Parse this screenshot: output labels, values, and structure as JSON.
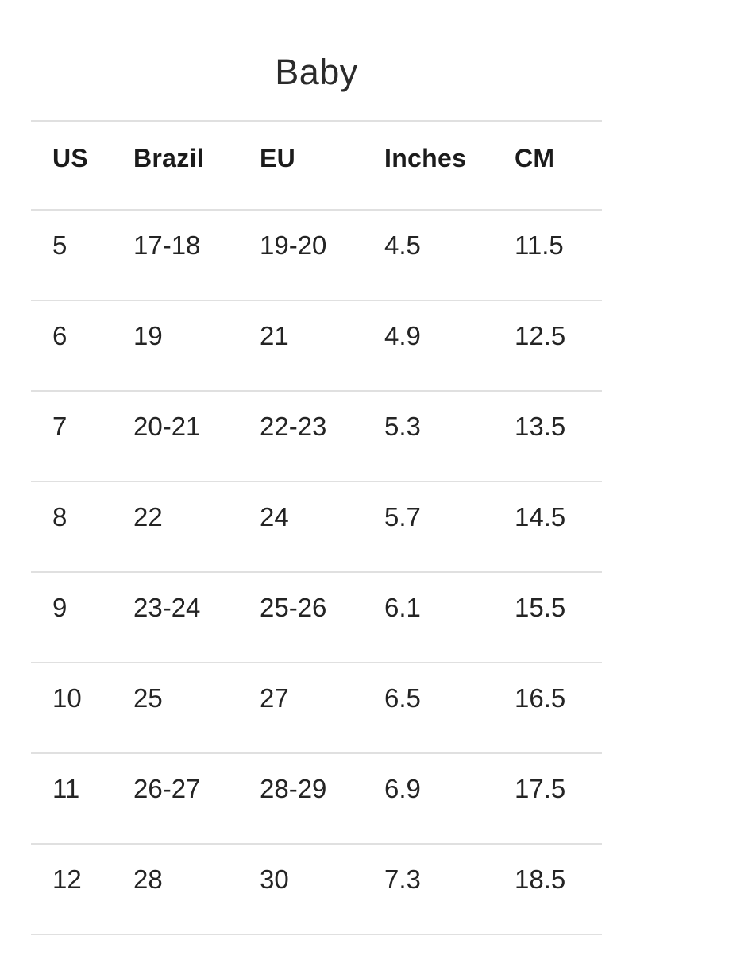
{
  "page": {
    "title": "Baby"
  },
  "size_table": {
    "headers": [
      "US",
      "Brazil",
      "EU",
      "Inches",
      "CM"
    ],
    "rows": [
      [
        "5",
        "17-18",
        "19-20",
        "4.5",
        "11.5"
      ],
      [
        "6",
        "19",
        "21",
        "4.9",
        "12.5"
      ],
      [
        "7",
        "20-21",
        "22-23",
        "5.3",
        "13.5"
      ],
      [
        "8",
        "22",
        "24",
        "5.7",
        "14.5"
      ],
      [
        "9",
        "23-24",
        "25-26",
        "6.1",
        "15.5"
      ],
      [
        "10",
        "25",
        "27",
        "6.5",
        "16.5"
      ],
      [
        "11",
        "26-27",
        "28-29",
        "6.9",
        "17.5"
      ],
      [
        "12",
        "28",
        "30",
        "7.3",
        "18.5"
      ]
    ]
  },
  "colors": {
    "background": "#ffffff",
    "text": "#242424",
    "heading": "#2b2b2b",
    "header_text": "#1b1b1b",
    "divider": "#e0e0e0"
  }
}
